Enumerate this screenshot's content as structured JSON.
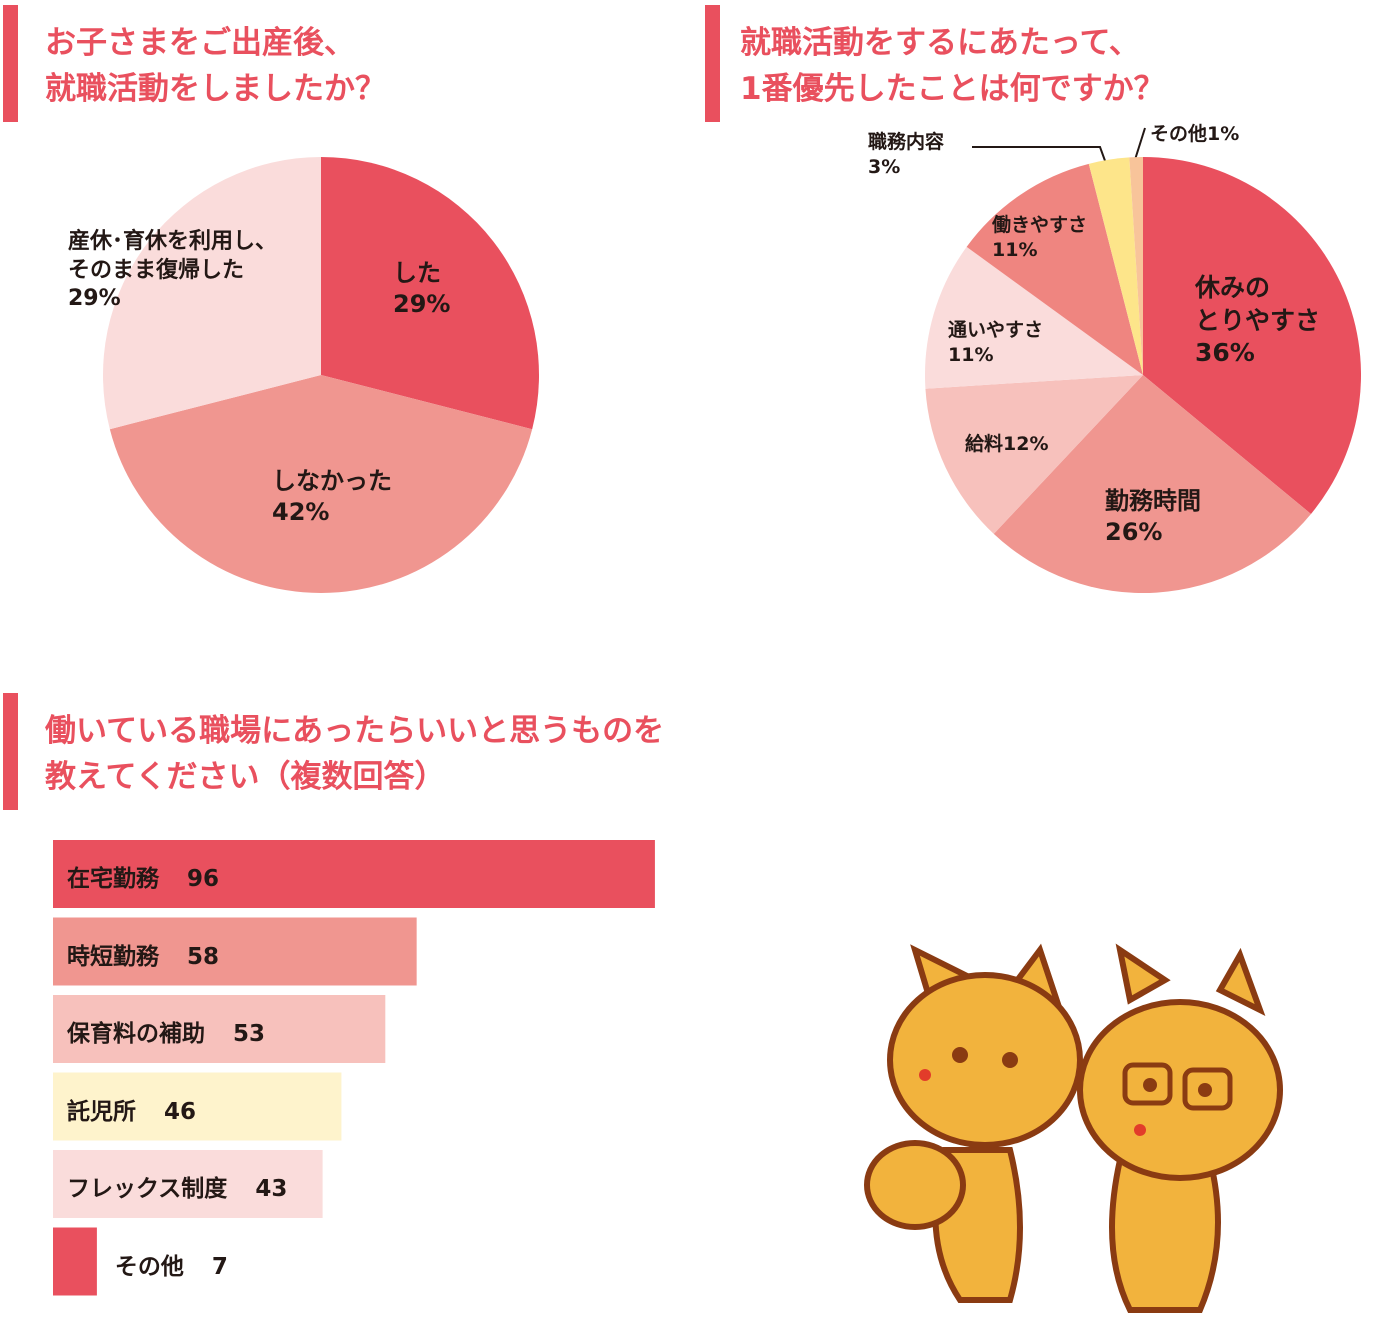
{
  "chart_data": [
    {
      "type": "pie",
      "title": [
        "お子さまをご出産後、",
        "就職活動をしましたか？"
      ],
      "categories": [
        "した",
        "しなかった",
        "産休･育休を利用し、\nそのまま復帰した"
      ],
      "values": [
        29,
        42,
        29
      ],
      "value_labels": [
        "29%",
        "42%",
        "29%"
      ],
      "colors": [
        "#e9505e",
        "#f09690",
        "#fadcdb"
      ]
    },
    {
      "type": "pie",
      "title": [
        "就職活動をするにあたって、",
        "1番優先したことは何ですか？"
      ],
      "categories": [
        "休みの\nとりやすさ",
        "勤務時間",
        "給料",
        "通いやすさ",
        "働きやすさ",
        "職務内容",
        "その他"
      ],
      "values": [
        36,
        26,
        12,
        11,
        11,
        3,
        1
      ],
      "value_labels": [
        "36%",
        "26%",
        "12%",
        "11%",
        "11%",
        "3%",
        "1%"
      ],
      "colors": [
        "#e9505e",
        "#f09690",
        "#f7c1bc",
        "#fadcdb",
        "#ef8580",
        "#fde58a",
        "#f8c49a"
      ]
    },
    {
      "type": "bar",
      "title": [
        "働いている職場にあったらいいと思うものを",
        "教えてください（複数回答）"
      ],
      "categories": [
        "在宅勤務",
        "時短勤務",
        "保育料の補助",
        "託児所",
        "フレックス制度",
        "その他"
      ],
      "values": [
        96,
        58,
        53,
        46,
        43,
        7
      ],
      "colors": [
        "#e9505e",
        "#f09690",
        "#f7c1bc",
        "#fef3cc",
        "#fadcdb",
        "#e9505e"
      ]
    }
  ]
}
